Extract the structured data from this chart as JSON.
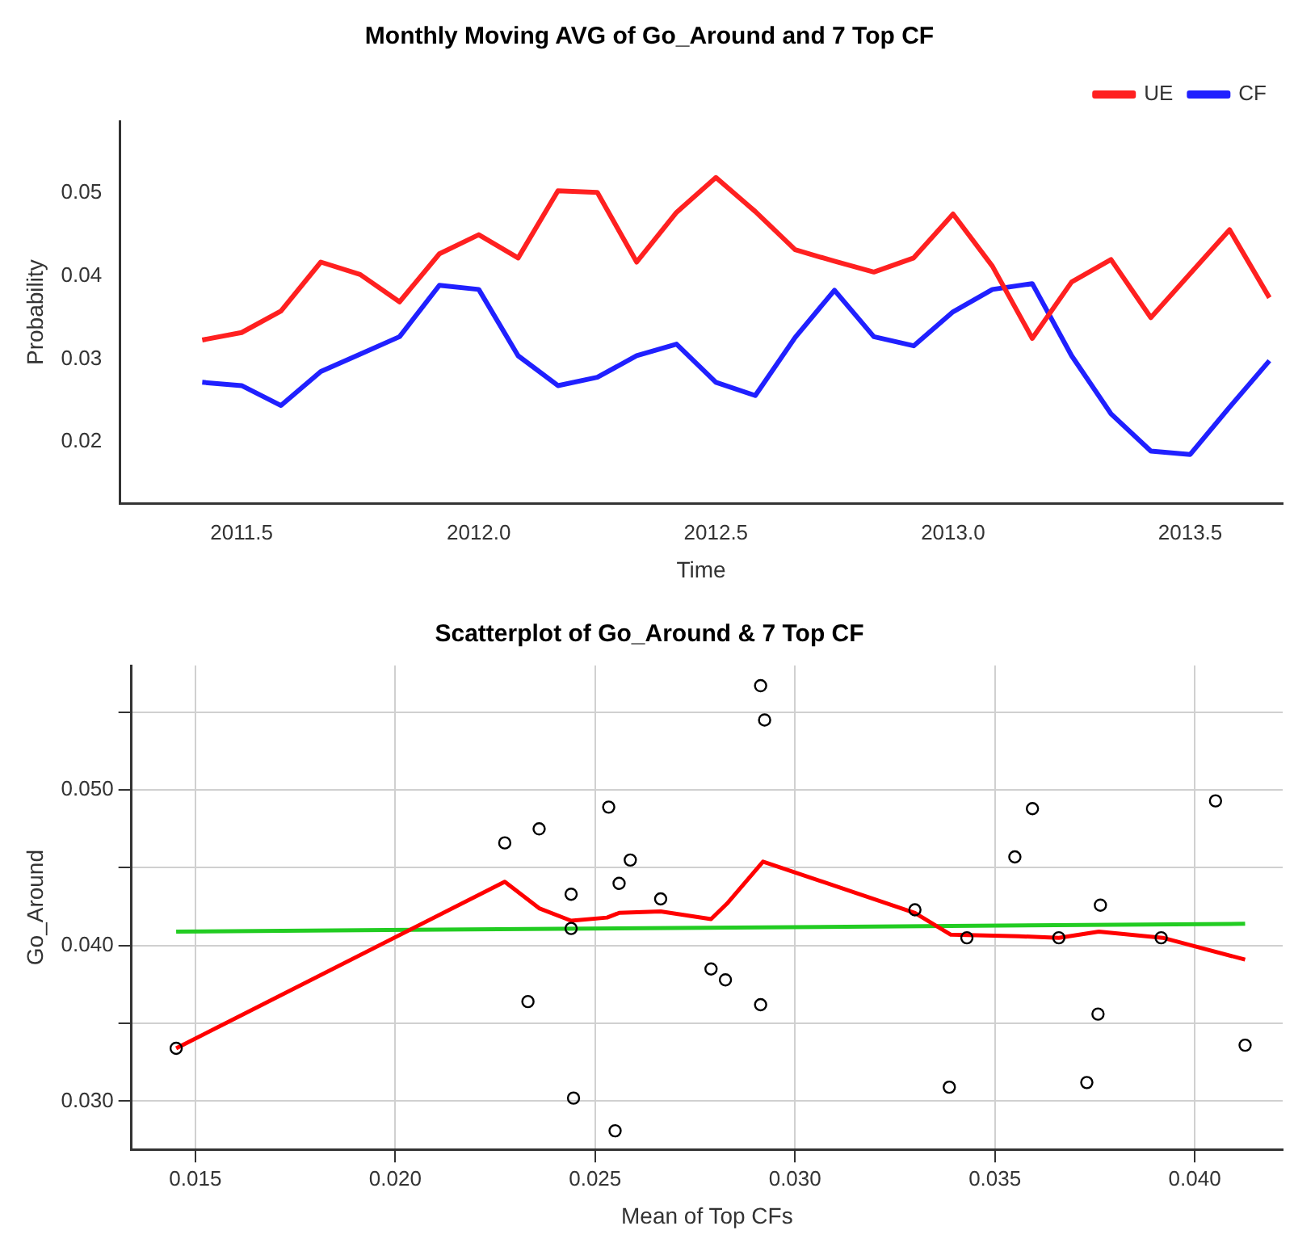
{
  "chart_data": [
    {
      "type": "line",
      "title": "Monthly Moving AVG of Go_Around and 7 Top CF",
      "xlabel": "Time",
      "ylabel": "Probability",
      "x": [
        2011.417,
        2011.5,
        2011.583,
        2011.667,
        2011.75,
        2011.833,
        2011.917,
        2012.0,
        2012.083,
        2012.167,
        2012.25,
        2012.333,
        2012.417,
        2012.5,
        2012.583,
        2012.667,
        2012.75,
        2012.833,
        2012.917,
        2013.0,
        2013.083,
        2013.167,
        2013.25,
        2013.333,
        2013.417,
        2013.5,
        2013.583,
        2013.667
      ],
      "series": [
        {
          "name": "UE",
          "color": "#ff2020",
          "values": [
            0.0323,
            0.0332,
            0.0358,
            0.0417,
            0.0402,
            0.0369,
            0.0427,
            0.045,
            0.0422,
            0.0503,
            0.0501,
            0.0417,
            0.0477,
            0.0519,
            0.0478,
            0.0432,
            0.0418,
            0.0405,
            0.0422,
            0.0475,
            0.0412,
            0.0325,
            0.0393,
            0.042,
            0.035,
            0.0403,
            0.0456,
            0.0374
          ]
        },
        {
          "name": "CF",
          "color": "#2020ff",
          "values": [
            0.0272,
            0.0268,
            0.0244,
            0.0285,
            0.0306,
            0.0327,
            0.0389,
            0.0384,
            0.0304,
            0.0268,
            0.0278,
            0.0304,
            0.0318,
            0.0272,
            0.0256,
            0.0326,
            0.0383,
            0.0327,
            0.0316,
            0.0357,
            0.0384,
            0.0391,
            0.0304,
            0.0234,
            0.0189,
            0.0185,
            0.0242,
            0.0298
          ]
        }
      ],
      "xlim": [
        2011.243,
        2013.695
      ],
      "xticks": [
        2011.5,
        {
          "value": 2012,
          "label": "2012.0"
        },
        2012.5,
        {
          "value": 2013,
          "label": "2013.0"
        },
        2013.5
      ],
      "ylim": [
        0.0126,
        0.0587
      ],
      "yticks": [
        0.02,
        0.03,
        0.04,
        0.05
      ],
      "legend": "top right",
      "marker": "none",
      "line_style": "solid",
      "grid": false
    },
    {
      "type": "scatter",
      "title": "Scatterplot of Go_Around & 7 Top CF",
      "xlabel": "Mean of Top CFs",
      "ylabel": "Go_Around",
      "series": [
        {
          "color": "#000000",
          "marker": "circle",
          "x": [
            0.01452,
            0.02274,
            0.0236,
            0.02332,
            0.0244,
            0.0244,
            0.02446,
            0.02534,
            0.0256,
            0.02588,
            0.0255,
            0.02664,
            0.0279,
            0.02826,
            0.02914,
            0.02924,
            0.02914,
            0.033,
            0.03386,
            0.0343,
            0.0355,
            0.03594,
            0.0366,
            0.0373,
            0.03758,
            0.03764,
            0.03916,
            0.04052,
            0.04126
          ],
          "values": [
            0.0334,
            0.0466,
            0.0475,
            0.0364,
            0.0433,
            0.0411,
            0.0302,
            0.0489,
            0.044,
            0.0455,
            0.0281,
            0.043,
            0.0385,
            0.0378,
            0.0567,
            0.0545,
            0.0362,
            0.0423,
            0.0309,
            0.0405,
            0.0457,
            0.0488,
            0.0405,
            0.0312,
            0.0356,
            0.0426,
            0.0405,
            0.0493,
            0.0336
          ]
        },
        {
          "type": "line",
          "color": "#ff0000",
          "marker": "none",
          "x": [
            0.01452,
            0.02274,
            0.0236,
            0.0244,
            0.0253,
            0.0256,
            0.02664,
            0.0279,
            0.0283,
            0.0292,
            0.033,
            0.0339,
            0.0356,
            0.0366,
            0.0376,
            0.0392,
            0.04126
          ],
          "values": [
            0.0334,
            0.0441,
            0.0424,
            0.0416,
            0.0418,
            0.0421,
            0.0422,
            0.0417,
            0.0427,
            0.0454,
            0.0421,
            0.0407,
            0.0406,
            0.0405,
            0.0409,
            0.0405,
            0.0391
          ]
        },
        {
          "type": "line",
          "color": "#22cc22",
          "marker": "none",
          "x": [
            0.01452,
            0.04126
          ],
          "values": [
            0.0409,
            0.0414
          ]
        }
      ],
      "xlim": [
        0.0134,
        0.0422
      ],
      "xticks": [
        0.015,
        {
          "value": 0.02,
          "label": "0.020"
        },
        0.025,
        {
          "value": 0.03,
          "label": "0.030"
        },
        0.035,
        {
          "value": 0.04,
          "label": "0.040"
        }
      ],
      "ylim": [
        0.0269,
        0.058
      ],
      "yticks": [
        {
          "value": 0.03,
          "label": "0.030"
        },
        {
          "value": 0.035,
          "label": null
        },
        {
          "value": 0.04,
          "label": "0.040"
        },
        {
          "value": 0.045,
          "label": null
        },
        {
          "value": 0.05,
          "label": "0.050"
        },
        {
          "value": 0.055,
          "label": null
        }
      ],
      "legend": false,
      "grid": true
    }
  ]
}
